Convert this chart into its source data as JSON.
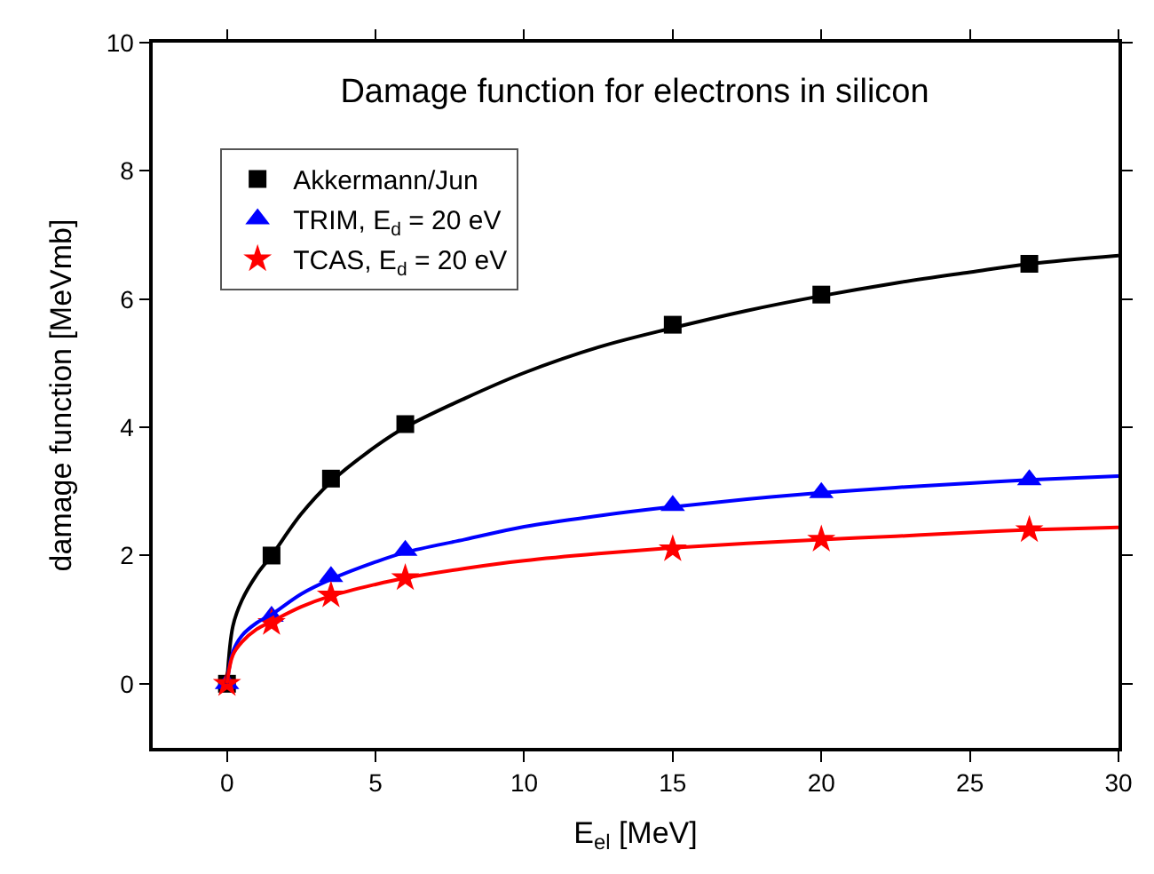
{
  "chart_data": {
    "type": "scatter",
    "title": "Damage function for electrons in silicon",
    "xlabel": "E$_{el}$ [MeV]",
    "ylabel": "damage function [MeVmb]",
    "xlim": [
      -2.5,
      30
    ],
    "xticks": [
      0,
      5,
      10,
      15,
      20,
      25,
      30
    ],
    "ylim": [
      -1,
      10
    ],
    "yticks": [
      0,
      2,
      4,
      6,
      8,
      10
    ],
    "legend": "top left",
    "series": [
      {
        "name": "Akkermann/Jun",
        "marker": "square",
        "color": "#000000",
        "x": [
          0,
          1.5,
          3.5,
          6,
          15,
          20,
          27
        ],
        "values": [
          0,
          2.0,
          3.2,
          4.05,
          5.6,
          6.07,
          6.55
        ]
      },
      {
        "name": "TRIM, E$_{d}$ = 20 eV",
        "marker": "triangle",
        "color": "#0000ff",
        "x": [
          0,
          1.5,
          3.5,
          6,
          15,
          20,
          27
        ],
        "values": [
          0,
          1.05,
          1.67,
          2.08,
          2.78,
          2.98,
          3.18
        ]
      },
      {
        "name": "TCAS, E$_{d}$ = 20 eV",
        "marker": "star",
        "color": "#ff0000",
        "x": [
          0,
          1.5,
          3.5,
          6,
          15,
          20,
          27
        ],
        "values": [
          0,
          0.95,
          1.38,
          1.65,
          2.1,
          2.25,
          2.4
        ]
      },
      {
        "type": "line",
        "marker": "none",
        "color": "#000000",
        "x": [
          0,
          0.2,
          0.5,
          1,
          1.5,
          2.5,
          3.5,
          5,
          6,
          8,
          10,
          12.5,
          15,
          17.5,
          20,
          22.5,
          25,
          27,
          30
        ],
        "values": [
          0,
          0.9,
          1.3,
          1.7,
          2.0,
          2.65,
          3.15,
          3.7,
          4.0,
          4.45,
          4.85,
          5.25,
          5.55,
          5.82,
          6.05,
          6.25,
          6.42,
          6.55,
          6.68
        ]
      },
      {
        "type": "line",
        "marker": "none",
        "color": "#0000ff",
        "x": [
          0,
          0.2,
          0.5,
          1,
          1.5,
          2.5,
          3.5,
          5,
          6,
          8,
          10,
          12.5,
          15,
          17.5,
          20,
          22.5,
          25,
          27,
          30
        ],
        "values": [
          0,
          0.5,
          0.75,
          0.95,
          1.08,
          1.4,
          1.63,
          1.9,
          2.05,
          2.25,
          2.45,
          2.62,
          2.76,
          2.88,
          2.98,
          3.06,
          3.13,
          3.18,
          3.24
        ]
      },
      {
        "type": "line",
        "marker": "none",
        "color": "#ff0000",
        "x": [
          0,
          0.2,
          0.5,
          1,
          1.5,
          2.5,
          3.5,
          5,
          6,
          8,
          10,
          12.5,
          15,
          17.5,
          20,
          22.5,
          25,
          27,
          30
        ],
        "values": [
          0,
          0.45,
          0.65,
          0.85,
          0.97,
          1.2,
          1.37,
          1.55,
          1.65,
          1.8,
          1.92,
          2.03,
          2.12,
          2.19,
          2.25,
          2.3,
          2.36,
          2.4,
          2.44
        ]
      }
    ]
  }
}
